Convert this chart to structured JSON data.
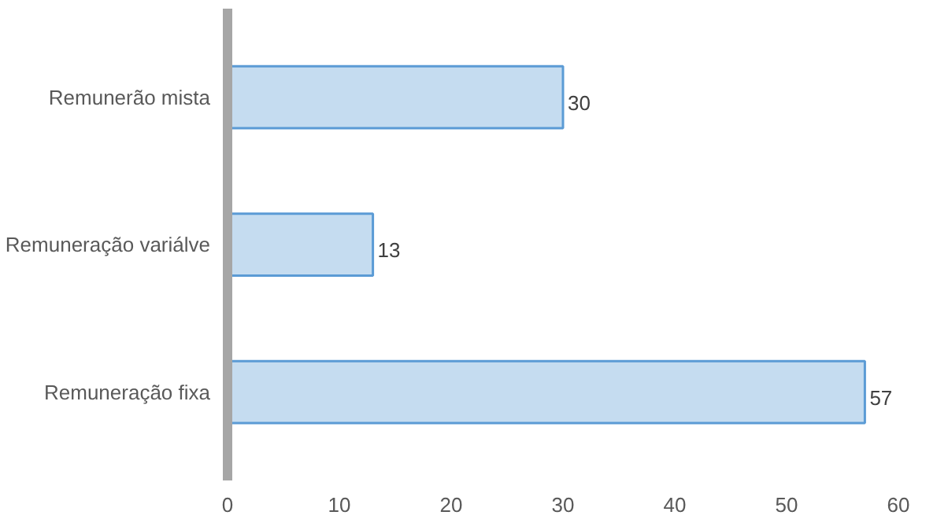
{
  "chart_data": {
    "type": "bar",
    "orientation": "horizontal",
    "categories": [
      "Remunerão mista",
      "Remuneração variálve",
      "Remuneração fixa"
    ],
    "values": [
      30,
      13,
      57
    ],
    "color": "#c5dcf0",
    "xlim": [
      0,
      60
    ],
    "xticks": [
      0,
      10,
      20,
      30,
      40,
      50,
      60
    ],
    "data_labels": true,
    "grid": false
  }
}
